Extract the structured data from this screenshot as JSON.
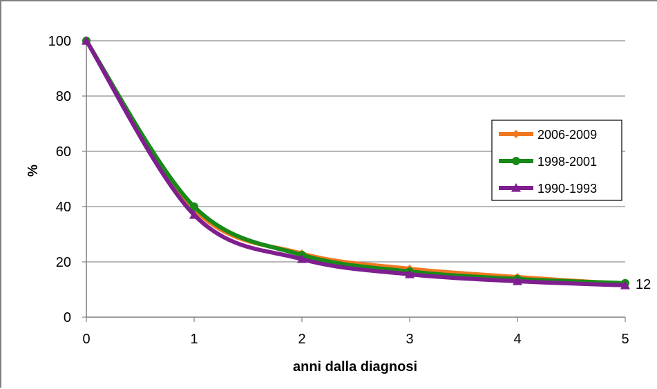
{
  "chart_data": {
    "type": "line",
    "title": "",
    "xlabel": "anni dalla diagnosi",
    "ylabel": "%",
    "xlim": [
      0,
      5
    ],
    "ylim": [
      0,
      100
    ],
    "x_ticks": [
      "0",
      "1",
      "2",
      "3",
      "4",
      "5"
    ],
    "y_ticks": [
      "0",
      "20",
      "40",
      "60",
      "80",
      "100"
    ],
    "grid": true,
    "legend_position": "right",
    "x": [
      0,
      1,
      2,
      3,
      4,
      5
    ],
    "series": [
      {
        "name": "2006-2009",
        "color": "#f07820",
        "marker": "diamond",
        "values": [
          100,
          39,
          23,
          17.5,
          14.5,
          12
        ]
      },
      {
        "name": "1998-2001",
        "color": "#178a17",
        "marker": "circle",
        "values": [
          100,
          40,
          22.5,
          16.5,
          13.8,
          12.3
        ]
      },
      {
        "name": "1990-1993",
        "color": "#7f1f8f",
        "marker": "triangle",
        "values": [
          100,
          37,
          21,
          15.5,
          13,
          11.5
        ]
      }
    ],
    "annotations": [
      {
        "text": "12",
        "x": 5,
        "y": 12
      }
    ]
  }
}
